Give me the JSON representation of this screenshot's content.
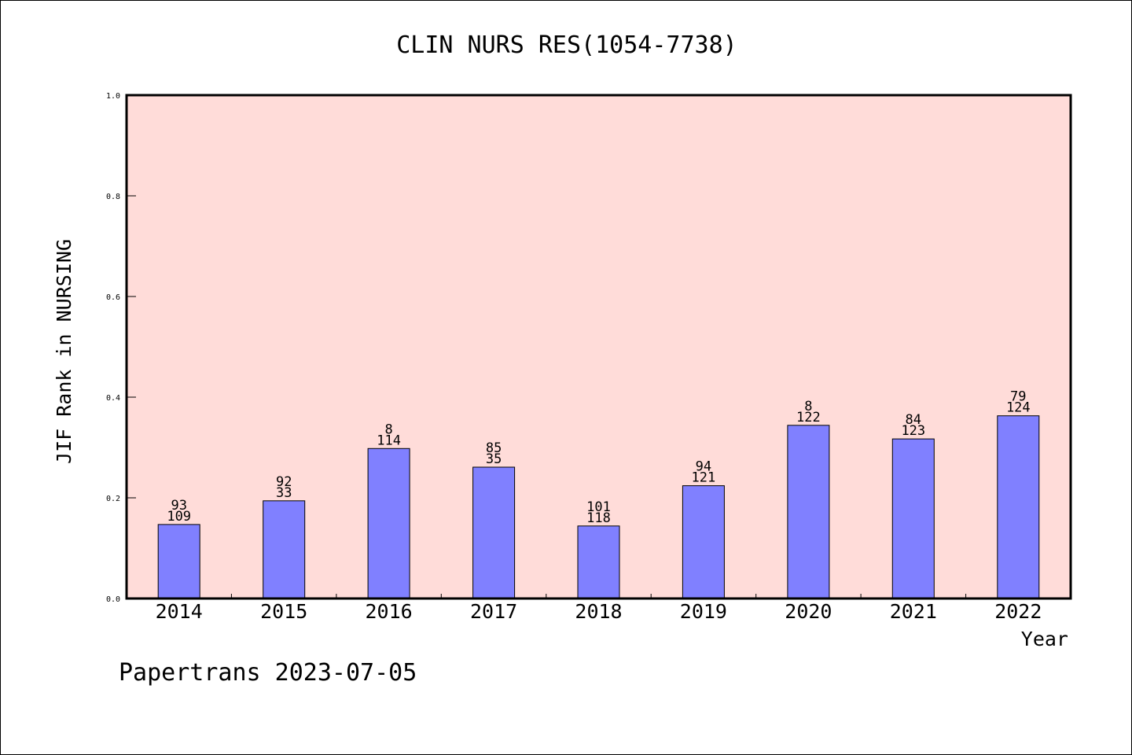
{
  "chart_data": {
    "type": "bar",
    "title": "CLIN NURS RES(1054-7738)",
    "xlabel": "Year",
    "ylabel": "JIF Rank in NURSING",
    "ylim": [
      0.0,
      1.0
    ],
    "yticks": [
      "0.0",
      "0.2",
      "0.4",
      "0.6",
      "0.8",
      "1.0"
    ],
    "categories": [
      "2014",
      "2015",
      "2016",
      "2017",
      "2018",
      "2019",
      "2020",
      "2021",
      "2022"
    ],
    "values": [
      0.147,
      0.194,
      0.298,
      0.261,
      0.144,
      0.224,
      0.344,
      0.317,
      0.363
    ],
    "labels_top": [
      "93",
      "92",
      "8",
      "85",
      "101",
      "94",
      "8",
      "84",
      "79"
    ],
    "labels_bottom": [
      "109",
      "33",
      "114",
      "35",
      "118",
      "121",
      "122",
      "123",
      "124"
    ],
    "grid": false,
    "colors": {
      "bar": "#8080ff",
      "plot_background": "#ffdcd9",
      "axes": "#000000"
    }
  },
  "footer": {
    "text": "Papertrans 2023-07-05"
  }
}
